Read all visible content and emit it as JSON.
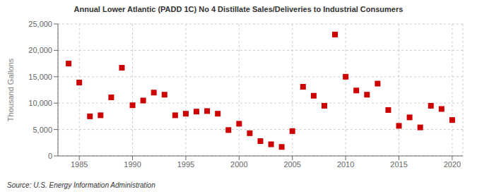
{
  "chart_data": {
    "type": "scatter",
    "title": "Annual Lower Atlantic (PADD 1C) No 4 Distillate Sales/Deliveries to Industrial Consumers",
    "y_label": "Thousand Gallons",
    "annotations": [
      "Source: U.S. Energy Information Administration"
    ],
    "x": [
      1984,
      1985,
      1986,
      1987,
      1988,
      1989,
      1990,
      1991,
      1992,
      1993,
      1994,
      1995,
      1996,
      1997,
      1998,
      1999,
      2000,
      2001,
      2002,
      2003,
      2004,
      2005,
      2006,
      2007,
      2008,
      2009,
      2010,
      2011,
      2012,
      2013,
      2014,
      2015,
      2016,
      2017,
      2018,
      2019,
      2020
    ],
    "values": [
      17500,
      13900,
      7500,
      7700,
      11100,
      16700,
      9600,
      10500,
      12000,
      11600,
      7700,
      8000,
      8400,
      8500,
      8000,
      4900,
      6100,
      4300,
      2800,
      2200,
      1700,
      4700,
      13100,
      11400,
      9500,
      23000,
      15000,
      12400,
      11600,
      13700,
      8700,
      5700,
      7300,
      5400,
      9500,
      8900,
      6800
    ],
    "color": "#cc0000",
    "marker": "square",
    "xlim": [
      1983,
      2021
    ],
    "xticks": [
      1985,
      1990,
      1995,
      2000,
      2005,
      2010,
      2015,
      2020
    ],
    "ylim": [
      0,
      25000
    ],
    "yticks": [
      0,
      {
        "value": 5000,
        "label": "5,000"
      },
      {
        "value": 10000,
        "label": "10,000"
      },
      {
        "value": 15000,
        "label": "15,000"
      },
      {
        "value": 20000,
        "label": "20,000"
      },
      {
        "value": 25000,
        "label": "25,000"
      }
    ],
    "grid": true
  }
}
